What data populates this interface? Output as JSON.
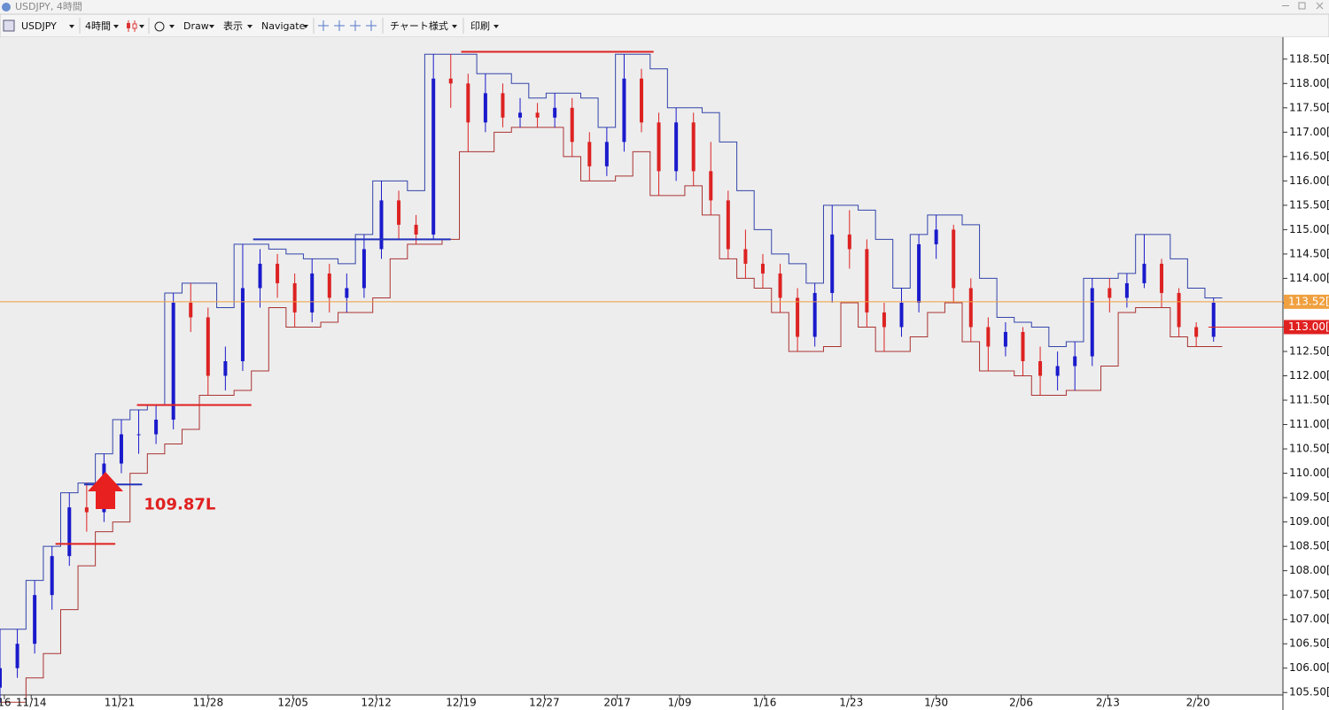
{
  "window_title": "USDJPY, 4時間",
  "toolbar": {
    "symbol": "USDJPY",
    "timeframe": "4時間",
    "draw": "Draw",
    "view": "表示",
    "navigate": "Navigate",
    "chart_style": "チャート様式",
    "print": "印刷"
  },
  "chart_data": {
    "type": "candlestick",
    "up_color": "#1a1acc",
    "down_color": "#dd2222",
    "xlim": [
      0,
      74
    ],
    "xticks": [
      {
        "value": 0.25,
        "label": "16"
      },
      {
        "value": 1.8,
        "label": "11/14"
      },
      {
        "value": 6.9,
        "label": "11/21"
      },
      {
        "value": 12,
        "label": "11/28"
      },
      {
        "value": 16.9,
        "label": "12/05"
      },
      {
        "value": 21.7,
        "label": "12/12"
      },
      {
        "value": 26.6,
        "label": "12/19"
      },
      {
        "value": 31.4,
        "label": "12/27"
      },
      {
        "value": 35.6,
        "label": "2017"
      },
      {
        "value": 39.2,
        "label": "1/09"
      },
      {
        "value": 44.1,
        "label": "1/16"
      },
      {
        "value": 49.1,
        "label": "1/23"
      },
      {
        "value": 54,
        "label": "1/30"
      },
      {
        "value": 58.9,
        "label": "2/06"
      },
      {
        "value": 63.9,
        "label": "2/13"
      },
      {
        "value": 69.1,
        "label": "2/20"
      }
    ],
    "ylim": [
      105.45,
      118.95
    ],
    "yticks": [
      {
        "value": 105.5,
        "label": "105.50["
      },
      {
        "value": 106,
        "label": "106.00["
      },
      {
        "value": 106.5,
        "label": "106.50["
      },
      {
        "value": 107,
        "label": "107.00["
      },
      {
        "value": 107.5,
        "label": "107.50["
      },
      {
        "value": 108,
        "label": "108.00["
      },
      {
        "value": 108.5,
        "label": "108.50["
      },
      {
        "value": 109,
        "label": "109.00["
      },
      {
        "value": 109.5,
        "label": "109.50["
      },
      {
        "value": 110,
        "label": "110.00["
      },
      {
        "value": 110.5,
        "label": "110.50["
      },
      {
        "value": 111,
        "label": "111.00["
      },
      {
        "value": 111.5,
        "label": "111.50["
      },
      {
        "value": 112,
        "label": "112.00["
      },
      {
        "value": 112.5,
        "label": "112.50["
      },
      {
        "value": 113,
        "label": "113.00["
      },
      {
        "value": 113.5,
        "label": "113.50["
      },
      {
        "value": 114,
        "label": "114.00["
      },
      {
        "value": 114.5,
        "label": "114.50["
      },
      {
        "value": 115,
        "label": "115.00["
      },
      {
        "value": 115.5,
        "label": "115.50["
      },
      {
        "value": 116,
        "label": "116.00["
      },
      {
        "value": 116.5,
        "label": "116.50["
      },
      {
        "value": 117,
        "label": "117.00["
      },
      {
        "value": 117.5,
        "label": "117.50["
      },
      {
        "value": 118,
        "label": "118.00["
      },
      {
        "value": 118.5,
        "label": "118.50["
      }
    ],
    "ohlc": [
      [
        105.6,
        106.8,
        105.3,
        106.0
      ],
      [
        106.0,
        106.8,
        105.8,
        106.5
      ],
      [
        106.5,
        107.8,
        106.3,
        107.5
      ],
      [
        107.5,
        108.5,
        107.2,
        108.3
      ],
      [
        108.3,
        109.6,
        108.1,
        109.3
      ],
      [
        109.3,
        109.8,
        108.8,
        109.2
      ],
      [
        109.2,
        110.4,
        109.0,
        110.2
      ],
      [
        110.2,
        111.1,
        110.0,
        110.8
      ],
      [
        110.8,
        111.3,
        110.4,
        110.8
      ],
      [
        110.8,
        111.4,
        110.6,
        111.1
      ],
      [
        111.1,
        113.7,
        110.9,
        113.5
      ],
      [
        113.5,
        113.9,
        112.9,
        113.2
      ],
      [
        113.2,
        113.4,
        111.6,
        112.0
      ],
      [
        112.0,
        112.6,
        111.7,
        112.3
      ],
      [
        112.3,
        114.7,
        112.1,
        113.8
      ],
      [
        113.8,
        114.6,
        113.4,
        114.3
      ],
      [
        114.3,
        114.5,
        113.6,
        113.9
      ],
      [
        113.9,
        114.1,
        113.0,
        113.3
      ],
      [
        113.3,
        114.4,
        113.1,
        114.1
      ],
      [
        114.1,
        114.3,
        113.3,
        113.6
      ],
      [
        113.6,
        114.1,
        113.3,
        113.8
      ],
      [
        113.8,
        114.9,
        113.6,
        114.6
      ],
      [
        114.6,
        116.0,
        114.4,
        115.6
      ],
      [
        115.6,
        115.8,
        114.8,
        115.1
      ],
      [
        115.1,
        115.3,
        114.7,
        114.9
      ],
      [
        114.9,
        118.6,
        114.8,
        118.1
      ],
      [
        118.1,
        118.6,
        117.5,
        118.0
      ],
      [
        118.0,
        118.2,
        116.6,
        117.2
      ],
      [
        117.2,
        118.2,
        117.0,
        117.8
      ],
      [
        117.8,
        118.0,
        117.1,
        117.3
      ],
      [
        117.3,
        117.7,
        117.1,
        117.4
      ],
      [
        117.4,
        117.6,
        117.1,
        117.3
      ],
      [
        117.3,
        117.8,
        117.1,
        117.5
      ],
      [
        117.5,
        117.7,
        116.5,
        116.8
      ],
      [
        116.8,
        117.0,
        116.0,
        116.3
      ],
      [
        116.3,
        117.1,
        116.1,
        116.8
      ],
      [
        116.8,
        118.6,
        116.6,
        118.1
      ],
      [
        118.1,
        118.3,
        117.0,
        117.2
      ],
      [
        117.2,
        117.4,
        115.7,
        116.2
      ],
      [
        116.2,
        117.5,
        116.0,
        117.2
      ],
      [
        117.2,
        117.4,
        115.9,
        116.2
      ],
      [
        116.2,
        116.8,
        115.3,
        115.6
      ],
      [
        115.6,
        115.8,
        114.4,
        114.6
      ],
      [
        114.6,
        115.0,
        114.0,
        114.3
      ],
      [
        114.3,
        114.5,
        113.8,
        114.1
      ],
      [
        114.1,
        114.3,
        113.3,
        113.6
      ],
      [
        113.6,
        113.8,
        112.5,
        112.8
      ],
      [
        112.8,
        113.9,
        112.6,
        113.7
      ],
      [
        113.7,
        115.5,
        113.5,
        114.9
      ],
      [
        114.9,
        115.4,
        114.2,
        114.6
      ],
      [
        114.6,
        114.8,
        113.0,
        113.3
      ],
      [
        113.3,
        113.5,
        112.5,
        113.0
      ],
      [
        113.0,
        113.8,
        112.8,
        113.5
      ],
      [
        113.5,
        114.9,
        113.3,
        114.7
      ],
      [
        114.7,
        115.3,
        114.4,
        115.0
      ],
      [
        115.0,
        115.1,
        113.5,
        113.8
      ],
      [
        113.8,
        114.0,
        112.7,
        113.0
      ],
      [
        113.0,
        113.2,
        112.1,
        112.6
      ],
      [
        112.6,
        113.1,
        112.4,
        112.9
      ],
      [
        112.9,
        113.0,
        112.0,
        112.3
      ],
      [
        112.3,
        112.6,
        111.6,
        112.0
      ],
      [
        112.0,
        112.5,
        111.7,
        112.2
      ],
      [
        112.2,
        112.7,
        111.7,
        112.4
      ],
      [
        112.4,
        114.0,
        112.2,
        113.8
      ],
      [
        113.8,
        114.0,
        113.3,
        113.6
      ],
      [
        113.6,
        114.1,
        113.4,
        113.9
      ],
      [
        113.9,
        114.9,
        113.8,
        114.3
      ],
      [
        114.3,
        114.4,
        113.4,
        113.7
      ],
      [
        113.7,
        113.8,
        112.8,
        113.0
      ],
      [
        113.0,
        113.1,
        112.6,
        112.8
      ],
      [
        112.8,
        113.6,
        112.7,
        113.5
      ]
    ],
    "channel_upper": {
      "color": "#3344aa",
      "values": [
        106.8,
        106.8,
        107.8,
        108.5,
        109.6,
        109.8,
        110.4,
        111.1,
        111.3,
        111.4,
        113.7,
        113.9,
        113.9,
        113.4,
        114.7,
        114.7,
        114.6,
        114.5,
        114.4,
        114.4,
        114.3,
        114.9,
        116.0,
        116.0,
        115.8,
        118.6,
        118.6,
        118.6,
        118.2,
        118.2,
        118.0,
        117.7,
        117.8,
        117.8,
        117.7,
        117.1,
        118.6,
        118.6,
        118.3,
        117.5,
        117.5,
        117.4,
        116.8,
        115.8,
        115.0,
        114.5,
        114.3,
        113.9,
        115.5,
        115.5,
        115.4,
        114.8,
        113.8,
        114.9,
        115.3,
        115.3,
        115.1,
        114.0,
        113.2,
        113.1,
        113.0,
        112.6,
        112.7,
        114.0,
        114.0,
        114.1,
        114.9,
        114.9,
        114.4,
        113.8,
        113.6
      ]
    },
    "channel_lower": {
      "color": "#aa3333",
      "values": [
        105.3,
        105.3,
        105.8,
        106.3,
        107.2,
        108.1,
        108.8,
        109.0,
        110.0,
        110.4,
        110.6,
        110.9,
        111.6,
        111.6,
        111.7,
        112.1,
        113.4,
        113.0,
        113.0,
        113.1,
        113.3,
        113.3,
        113.6,
        114.4,
        114.7,
        114.7,
        114.8,
        116.6,
        116.6,
        117.0,
        117.1,
        117.1,
        117.1,
        116.5,
        116.0,
        116.0,
        116.1,
        116.6,
        115.7,
        115.7,
        115.9,
        115.3,
        114.4,
        114.0,
        113.8,
        113.3,
        112.5,
        112.5,
        112.6,
        113.5,
        113.0,
        112.5,
        112.5,
        112.8,
        113.3,
        113.5,
        112.7,
        112.1,
        112.1,
        112.0,
        111.6,
        111.6,
        111.7,
        111.7,
        112.2,
        113.3,
        113.4,
        113.4,
        112.8,
        112.6,
        112.6
      ]
    },
    "levels": [
      {
        "value": 118.65,
        "color": "#e02020",
        "x": [
          26.6,
          37.7
        ]
      },
      {
        "value": 114.8,
        "color": "#2233bb",
        "x": [
          14.6,
          26
        ]
      },
      {
        "value": 111.4,
        "color": "#e02020",
        "x": [
          7.9,
          14.5
        ]
      },
      {
        "value": 109.77,
        "color": "#2233bb",
        "x": [
          4.85,
          8.2
        ]
      },
      {
        "value": 108.55,
        "color": "#e02020",
        "x": [
          3.2,
          6.65
        ]
      }
    ],
    "price_markers": [
      {
        "value": 113.52,
        "label": "113.52[",
        "color": "#f0a040",
        "x_from": 0
      },
      {
        "value": 113,
        "label": "113.00[",
        "color": "#e02020",
        "x_from": 69.7
      }
    ],
    "annotation": {
      "text": "109.87L",
      "color": "#e02020",
      "x": 8.3,
      "y": 109.35
    }
  }
}
